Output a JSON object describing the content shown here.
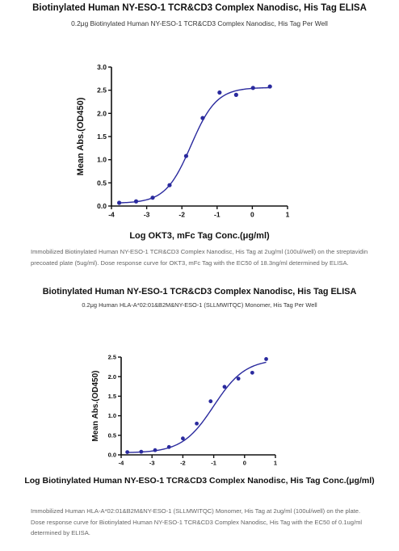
{
  "panel1": {
    "title": "Biotinylated Human NY-ESO-1 TCR&CD3 Complex Nanodisc, His Tag ELISA",
    "subtitle": "0.2μg Biotinylated Human NY-ESO-1 TCR&CD3 Complex Nanodisc, His Tag Per Well",
    "caption": "Immobilized Biotinylated Human NY-ESO-1 TCR&CD3 Complex Nanodisc, His Tag at 2ug/ml (100ul/well) on the streptavidin precoated plate (5ug/ml). Dose response curve for OKT3, mFc Tag with the EC50 of 18.3ng/ml determined by ELISA."
  },
  "panel2": {
    "title": "Biotinylated Human NY-ESO-1 TCR&CD3 Complex Nanodisc, His Tag ELISA",
    "subtitle": "0.2μg Human HLA-A*02:01&B2M&NY-ESO-1 (SLLMWITQC) Monomer, His Tag Per Well",
    "caption": "Immobilized Human HLA-A*02:01&B2M&NY-ESO-1 (SLLMWITQC) Monomer, His Tag at 2ug/ml (100ul/well) on the plate. Dose response curve for Biotinylated Human NY-ESO-1 TCR&CD3 Complex Nanodisc, His Tag with the EC50 of 0.1ug/ml determined by ELISA."
  },
  "colors": {
    "series": "#2a2a9e",
    "axis": "#111111"
  },
  "chart_data": [
    {
      "type": "scatter",
      "xlabel": "Log OKT3, mFc Tag Conc.(μg/ml)",
      "ylabel": "Mean Abs.(OD450)",
      "xlim": [
        -4,
        1
      ],
      "ylim": [
        0,
        3.0
      ],
      "xticks": [
        "-4",
        "-3",
        "-2",
        "-1",
        "0",
        "1"
      ],
      "yticks": [
        "0.0",
        "0.5",
        "1.0",
        "1.5",
        "2.0",
        "2.5",
        "3.0"
      ],
      "x": [
        -3.78,
        -3.3,
        -2.83,
        -2.35,
        -1.88,
        -1.41,
        -0.93,
        -0.46,
        0.02,
        0.5
      ],
      "y": [
        0.07,
        0.1,
        0.18,
        0.45,
        1.08,
        1.9,
        2.45,
        2.4,
        2.55,
        2.58
      ],
      "fit": {
        "bottom": 0.06,
        "top": 2.56,
        "log_ec50": -1.74,
        "hill": 1.2
      },
      "grid": false
    },
    {
      "type": "scatter",
      "xlabel": "Log Biotinylated Human NY-ESO-1 TCR&CD3 Complex Nanodisc, His Tag Conc.(μg/ml)",
      "ylabel": "Mean Abs.(OD450)",
      "xlim": [
        -4,
        1
      ],
      "ylim": [
        0,
        2.5
      ],
      "xticks": [
        "-4",
        "-3",
        "-2",
        "-1",
        "0",
        "1"
      ],
      "yticks": [
        "0.0",
        "0.5",
        "1.0",
        "1.5",
        "2.0",
        "2.5"
      ],
      "x": [
        -3.8,
        -3.35,
        -2.9,
        -2.45,
        -2.0,
        -1.55,
        -1.1,
        -0.65,
        -0.2,
        0.25,
        0.7
      ],
      "y": [
        0.07,
        0.08,
        0.12,
        0.2,
        0.42,
        0.8,
        1.37,
        1.74,
        1.95,
        2.1,
        2.45
      ],
      "fit": {
        "bottom": 0.05,
        "top": 2.45,
        "log_ec50": -1.0,
        "hill": 0.85
      },
      "grid": false
    }
  ]
}
